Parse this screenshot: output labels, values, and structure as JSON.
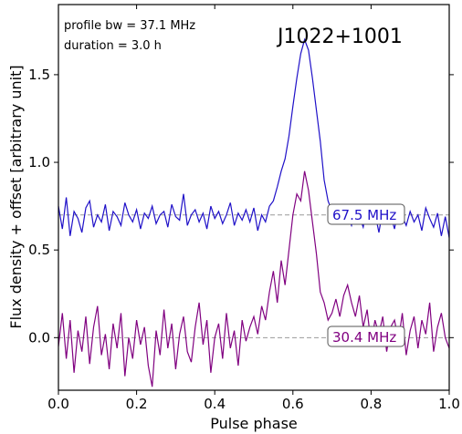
{
  "chart_data": {
    "type": "line",
    "title": "J1022+1001",
    "annotations": [
      "profile bw = 37.1 MHz",
      "duration = 3.0 h"
    ],
    "xlabel": "Pulse phase",
    "ylabel": "Flux density + offset [arbitrary unit]",
    "xlim": [
      0.0,
      1.0
    ],
    "ylim": [
      -0.3,
      1.9
    ],
    "xticks": [
      "0.0",
      "0.2",
      "0.4",
      "0.6",
      "0.8",
      "1.0"
    ],
    "yticks": [
      "0.0",
      "0.5",
      "1.0",
      "1.5"
    ],
    "grid": false,
    "series": [
      {
        "name": "67.5 MHz",
        "color": "#1f10c8",
        "baseline": 0.7,
        "x": [
          0.0,
          0.01,
          0.02,
          0.03,
          0.04,
          0.05,
          0.06,
          0.07,
          0.08,
          0.09,
          0.1,
          0.11,
          0.12,
          0.13,
          0.14,
          0.15,
          0.16,
          0.17,
          0.18,
          0.19,
          0.2,
          0.21,
          0.22,
          0.23,
          0.24,
          0.25,
          0.26,
          0.27,
          0.28,
          0.29,
          0.3,
          0.31,
          0.32,
          0.33,
          0.34,
          0.35,
          0.36,
          0.37,
          0.38,
          0.39,
          0.4,
          0.41,
          0.42,
          0.43,
          0.44,
          0.45,
          0.46,
          0.47,
          0.48,
          0.49,
          0.5,
          0.51,
          0.52,
          0.53,
          0.54,
          0.55,
          0.56,
          0.57,
          0.58,
          0.59,
          0.6,
          0.61,
          0.62,
          0.63,
          0.64,
          0.65,
          0.66,
          0.67,
          0.68,
          0.69,
          0.7,
          0.71,
          0.72,
          0.73,
          0.74,
          0.75,
          0.76,
          0.77,
          0.78,
          0.79,
          0.8,
          0.81,
          0.82,
          0.83,
          0.84,
          0.85,
          0.86,
          0.87,
          0.88,
          0.89,
          0.9,
          0.91,
          0.92,
          0.93,
          0.94,
          0.95,
          0.96,
          0.97,
          0.98,
          0.99,
          1.0
        ],
        "y": [
          0.75,
          0.62,
          0.8,
          0.58,
          0.72,
          0.68,
          0.6,
          0.74,
          0.78,
          0.63,
          0.7,
          0.66,
          0.76,
          0.61,
          0.72,
          0.69,
          0.64,
          0.77,
          0.7,
          0.66,
          0.73,
          0.62,
          0.71,
          0.68,
          0.75,
          0.65,
          0.7,
          0.72,
          0.63,
          0.76,
          0.69,
          0.67,
          0.82,
          0.64,
          0.7,
          0.73,
          0.66,
          0.71,
          0.62,
          0.75,
          0.68,
          0.72,
          0.65,
          0.7,
          0.77,
          0.64,
          0.71,
          0.67,
          0.73,
          0.66,
          0.74,
          0.61,
          0.7,
          0.66,
          0.75,
          0.78,
          0.86,
          0.95,
          1.02,
          1.15,
          1.32,
          1.48,
          1.62,
          1.7,
          1.64,
          1.48,
          1.3,
          1.12,
          0.9,
          0.78,
          0.72,
          0.68,
          0.74,
          0.66,
          0.7,
          0.64,
          0.72,
          0.69,
          0.63,
          0.76,
          0.68,
          0.71,
          0.6,
          0.73,
          0.67,
          0.7,
          0.62,
          0.75,
          0.69,
          0.64,
          0.72,
          0.66,
          0.7,
          0.61,
          0.74,
          0.68,
          0.63,
          0.71,
          0.58,
          0.69,
          0.57
        ]
      },
      {
        "name": "30.4 MHz",
        "color": "#800080",
        "baseline": 0.0,
        "x": [
          0.0,
          0.01,
          0.02,
          0.03,
          0.04,
          0.05,
          0.06,
          0.07,
          0.08,
          0.09,
          0.1,
          0.11,
          0.12,
          0.13,
          0.14,
          0.15,
          0.16,
          0.17,
          0.18,
          0.19,
          0.2,
          0.21,
          0.22,
          0.23,
          0.24,
          0.25,
          0.26,
          0.27,
          0.28,
          0.29,
          0.3,
          0.31,
          0.32,
          0.33,
          0.34,
          0.35,
          0.36,
          0.37,
          0.38,
          0.39,
          0.4,
          0.41,
          0.42,
          0.43,
          0.44,
          0.45,
          0.46,
          0.47,
          0.48,
          0.49,
          0.5,
          0.51,
          0.52,
          0.53,
          0.54,
          0.55,
          0.56,
          0.57,
          0.58,
          0.59,
          0.6,
          0.61,
          0.62,
          0.63,
          0.64,
          0.65,
          0.66,
          0.67,
          0.68,
          0.69,
          0.7,
          0.71,
          0.72,
          0.73,
          0.74,
          0.75,
          0.76,
          0.77,
          0.78,
          0.79,
          0.8,
          0.81,
          0.82,
          0.83,
          0.84,
          0.85,
          0.86,
          0.87,
          0.88,
          0.89,
          0.9,
          0.91,
          0.92,
          0.93,
          0.94,
          0.95,
          0.96,
          0.97,
          0.98,
          0.99,
          1.0
        ],
        "y": [
          -0.05,
          0.14,
          -0.12,
          0.1,
          -0.2,
          0.04,
          -0.08,
          0.12,
          -0.15,
          0.06,
          0.18,
          -0.1,
          0.02,
          -0.18,
          0.08,
          -0.06,
          0.14,
          -0.22,
          0.0,
          -0.12,
          0.1,
          -0.04,
          0.06,
          -0.16,
          -0.28,
          0.04,
          -0.1,
          0.16,
          -0.06,
          0.08,
          -0.18,
          0.02,
          0.12,
          -0.08,
          -0.14,
          0.06,
          0.2,
          -0.04,
          0.1,
          -0.2,
          0.0,
          0.08,
          -0.12,
          0.14,
          -0.06,
          0.04,
          -0.16,
          0.1,
          -0.02,
          0.06,
          0.12,
          0.02,
          0.18,
          0.1,
          0.26,
          0.38,
          0.2,
          0.44,
          0.3,
          0.5,
          0.7,
          0.82,
          0.78,
          0.95,
          0.84,
          0.66,
          0.48,
          0.26,
          0.2,
          0.1,
          0.14,
          0.22,
          0.12,
          0.24,
          0.3,
          0.2,
          0.12,
          0.24,
          0.06,
          0.16,
          -0.04,
          0.1,
          0.02,
          0.12,
          -0.08,
          0.06,
          0.1,
          -0.02,
          0.14,
          -0.1,
          0.04,
          0.12,
          -0.06,
          0.1,
          0.02,
          0.2,
          -0.08,
          0.06,
          0.14,
          0.0,
          -0.06
        ]
      }
    ]
  }
}
